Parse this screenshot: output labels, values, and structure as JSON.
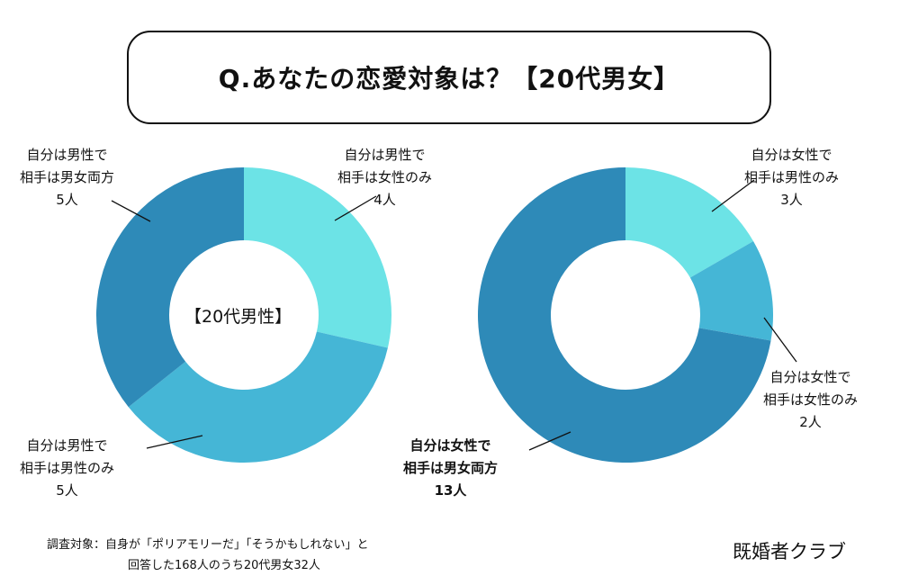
{
  "title": "Q.あなたの恋愛対象は？【20代男女】",
  "chart_data": [
    {
      "type": "pie",
      "donut": true,
      "center_label": "【20代男性】",
      "categories": [
        "自分は男性で相手は女性のみ",
        "自分は男性で相手は男性のみ",
        "自分は男性で相手は男女両方"
      ],
      "values": [
        4,
        5,
        5
      ],
      "colors": [
        "#6ce3e6",
        "#45b6d6",
        "#2e8ab8"
      ],
      "labels": [
        {
          "line1": "自分は男性で",
          "line2": "相手は女性のみ",
          "value": "4人"
        },
        {
          "line1": "自分は男性で",
          "line2": "相手は男性のみ",
          "value": "5人"
        },
        {
          "line1": "自分は男性で",
          "line2": "相手は男女両方",
          "value": "5人"
        }
      ]
    },
    {
      "type": "pie",
      "donut": true,
      "categories": [
        "自分は女性で相手は男性のみ",
        "自分は女性で相手は女性のみ",
        "自分は女性で相手は男女両方"
      ],
      "values": [
        3,
        2,
        13
      ],
      "colors": [
        "#6ce3e6",
        "#45b6d6",
        "#2e8ab8"
      ],
      "labels": [
        {
          "line1": "自分は女性で",
          "line2": "相手は男性のみ",
          "value": "3人"
        },
        {
          "line1": "自分は女性で",
          "line2": "相手は女性のみ",
          "value": "2人"
        },
        {
          "line1": "自分は女性で",
          "line2": "相手は男女両方",
          "value": "13人"
        }
      ]
    }
  ],
  "footnote": {
    "line1": "調査対象：自身が「ポリアモリーだ」「そうかもしれない」と",
    "line2": "回答した168人のうち20代男女32人"
  },
  "brand": "既婚者クラブ"
}
